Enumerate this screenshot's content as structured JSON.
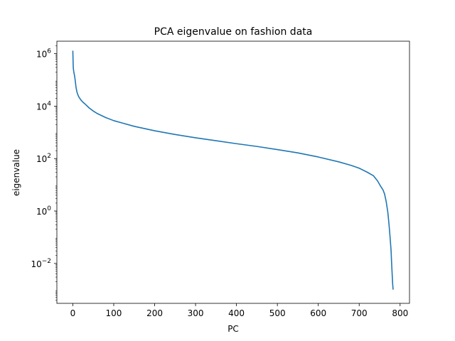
{
  "chart_data": {
    "type": "line",
    "title": "PCA eigenvalue on fashion data",
    "xlabel": "PC",
    "ylabel": "eigenvalue",
    "yscale": "log",
    "xlim": [
      -39,
      823
    ],
    "ylim": [
      0.0003,
      3000000
    ],
    "grid": false,
    "x_ticks": [
      0,
      100,
      200,
      300,
      400,
      500,
      600,
      700,
      800
    ],
    "y_ticks": [
      {
        "value": 0.01,
        "base": "10",
        "exp": "−2"
      },
      {
        "value": 1,
        "base": "10",
        "exp": "0"
      },
      {
        "value": 100,
        "base": "10",
        "exp": "2"
      },
      {
        "value": 10000,
        "base": "10",
        "exp": "4"
      },
      {
        "value": 1000000,
        "base": "10",
        "exp": "6"
      }
    ],
    "series": [
      {
        "color": "#1f77b4",
        "x": [
          0,
          1,
          2,
          3,
          4,
          5,
          6,
          8,
          10,
          12,
          15,
          20,
          25,
          30,
          40,
          50,
          60,
          80,
          100,
          120,
          150,
          200,
          250,
          300,
          350,
          400,
          450,
          500,
          550,
          600,
          650,
          680,
          700,
          720,
          735,
          745,
          752,
          758,
          762,
          766,
          770,
          773,
          776,
          778,
          779,
          780,
          781,
          782,
          783
        ],
        "y": [
          1300000,
          300000,
          220000,
          180000,
          150000,
          120000,
          90000,
          50000,
          35000,
          28000,
          22000,
          17000,
          14000,
          12000,
          8500,
          6500,
          5200,
          3700,
          2800,
          2300,
          1700,
          1150,
          830,
          620,
          480,
          370,
          290,
          220,
          165,
          115,
          75,
          55,
          43,
          30,
          22,
          14,
          9,
          6.5,
          4.5,
          2.3,
          0.9,
          0.3,
          0.08,
          0.03,
          0.013,
          0.006,
          0.003,
          0.0015,
          0.001
        ]
      }
    ]
  }
}
